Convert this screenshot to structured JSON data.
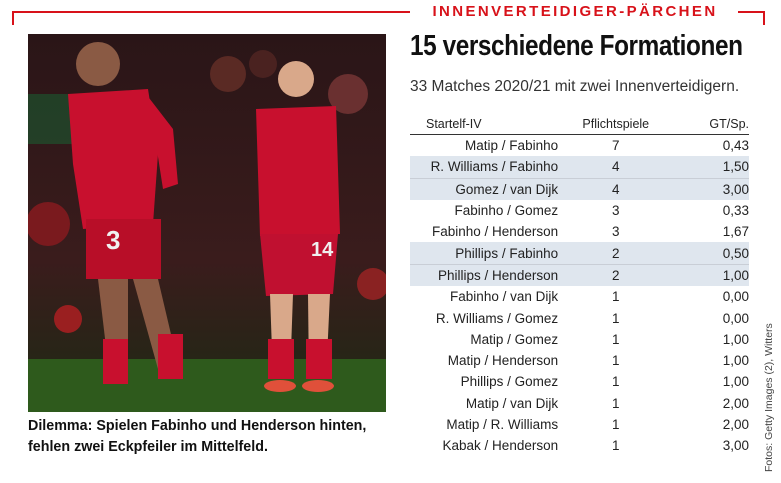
{
  "section_label": "INNENVERTEIDIGER-PÄRCHEN",
  "headline": "15 verschiedene Formationen",
  "subline": "33 Matches 2020/21 mit zwei Innenverteidigern.",
  "photo": {
    "number_left": "3",
    "number_right": "14",
    "caption": "Dilemma: Spielen Fabinho und Henderson hinten, fehlen zwei Eckpfeiler im Mittelfeld."
  },
  "table": {
    "headers": [
      "Startelf-IV",
      "Pflichtspiele",
      "GT/Sp."
    ],
    "rows": [
      {
        "pair": "Matip / Fabinho",
        "games": "7",
        "gt": "0,43",
        "highlight": false
      },
      {
        "pair": "R. Williams / Fabinho",
        "games": "4",
        "gt": "1,50",
        "highlight": true
      },
      {
        "pair": "Gomez / van Dijk",
        "games": "4",
        "gt": "3,00",
        "highlight": true
      },
      {
        "pair": "Fabinho / Gomez",
        "games": "3",
        "gt": "0,33",
        "highlight": false
      },
      {
        "pair": "Fabinho / Henderson",
        "games": "3",
        "gt": "1,67",
        "highlight": false
      },
      {
        "pair": "Phillips / Fabinho",
        "games": "2",
        "gt": "0,50",
        "highlight": true
      },
      {
        "pair": "Phillips / Henderson",
        "games": "2",
        "gt": "1,00",
        "highlight": true
      },
      {
        "pair": "Fabinho / van Dijk",
        "games": "1",
        "gt": "0,00",
        "highlight": false
      },
      {
        "pair": "R. Williams / Gomez",
        "games": "1",
        "gt": "0,00",
        "highlight": false
      },
      {
        "pair": "Matip / Gomez",
        "games": "1",
        "gt": "1,00",
        "highlight": false
      },
      {
        "pair": "Matip / Henderson",
        "games": "1",
        "gt": "1,00",
        "highlight": false
      },
      {
        "pair": "Phillips / Gomez",
        "games": "1",
        "gt": "1,00",
        "highlight": false
      },
      {
        "pair": "Matip / van Dijk",
        "games": "1",
        "gt": "2,00",
        "highlight": false
      },
      {
        "pair": "Matip / R. Williams",
        "games": "1",
        "gt": "2,00",
        "highlight": false
      },
      {
        "pair": "Kabak / Henderson",
        "games": "1",
        "gt": "3,00",
        "highlight": false
      }
    ]
  },
  "credit": "Fotos: Getty Images (2), Witters",
  "colors": {
    "accent": "#d8121a",
    "row_highlight": "#dfe6ee",
    "kit": "#c8102e"
  }
}
